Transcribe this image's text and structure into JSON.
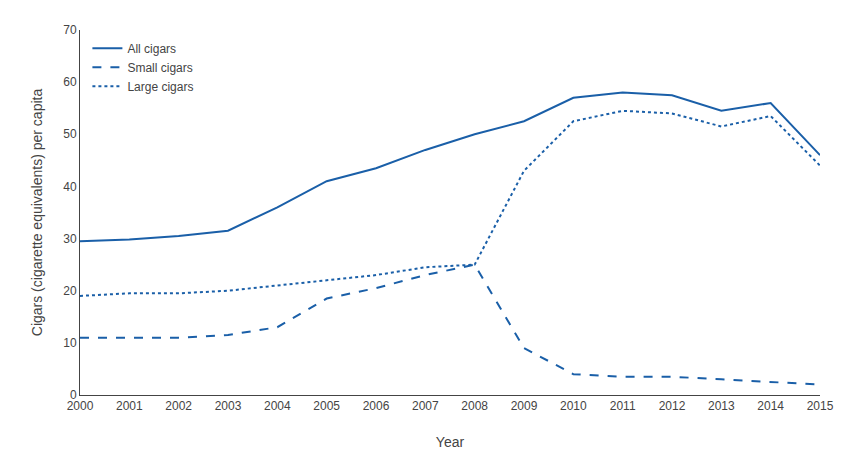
{
  "chart_data": {
    "type": "line",
    "xlabel": "Year",
    "ylabel": "Cigars (cigarette equivalents) per capita",
    "x": [
      2000,
      2001,
      2002,
      2003,
      2004,
      2005,
      2006,
      2007,
      2008,
      2009,
      2010,
      2011,
      2012,
      2013,
      2014,
      2015
    ],
    "series": [
      {
        "name": "All cigars",
        "color": "#1a5fa8",
        "line_style": "solid",
        "values": [
          29.5,
          29.8,
          30.5,
          31.5,
          36.0,
          41.0,
          43.5,
          47.0,
          50.0,
          52.5,
          57.0,
          58.0,
          57.5,
          54.5,
          56.0,
          46.0
        ]
      },
      {
        "name": "Small cigars",
        "color": "#1a5fa8",
        "line_style": "dashed",
        "values": [
          11.0,
          11.0,
          11.0,
          11.5,
          13.0,
          18.5,
          20.5,
          23.0,
          25.0,
          9.0,
          4.0,
          3.5,
          3.5,
          3.0,
          2.5,
          2.0
        ]
      },
      {
        "name": "Large cigars",
        "color": "#1a5fa8",
        "line_style": "dotted",
        "values": [
          19.0,
          19.5,
          19.5,
          20.0,
          21.0,
          22.0,
          23.0,
          24.5,
          25.0,
          43.0,
          52.5,
          54.5,
          54.0,
          51.5,
          53.5,
          44.0
        ]
      }
    ],
    "xlim": [
      2000,
      2015
    ],
    "xticks": [
      2000,
      2001,
      2002,
      2003,
      2004,
      2005,
      2006,
      2007,
      2008,
      2009,
      2010,
      2011,
      2012,
      2013,
      2014,
      2015
    ],
    "ylim": [
      0,
      70
    ],
    "yticks": [
      0,
      10,
      20,
      30,
      40,
      50,
      60,
      70
    ],
    "legend": "upper left",
    "grid": false
  }
}
